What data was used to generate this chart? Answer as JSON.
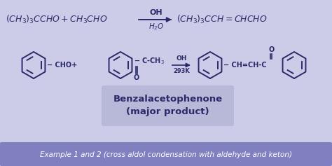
{
  "bg_color": "#cccce8",
  "banner_color": "#8080c0",
  "box_color": "#b8b8d8",
  "text_color": "#2a2a6a",
  "banner_text_color": "#ffffff",
  "line1_left": "$(CH_3)_3CCHO + CH_3CHO$",
  "line1_arrow_top": "OH",
  "line1_arrow_bottom": "$H_2O$",
  "line1_right": "$(CH_3)_3CCH= CHCHO$",
  "box_line1": "Benzalacetophenone",
  "box_line2": "(major product)",
  "banner_text": "Example 1 and 2 (cross aldol condensation with aldehyde and keton)",
  "fig_w": 4.74,
  "fig_h": 2.37,
  "dpi": 100
}
